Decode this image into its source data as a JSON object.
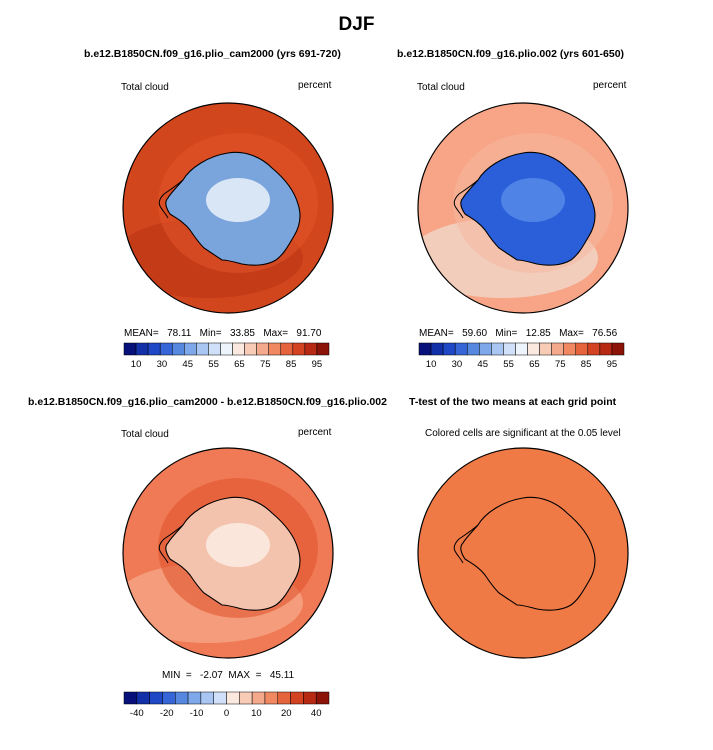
{
  "figure": {
    "title": "DJF"
  },
  "panels": [
    {
      "title": "b.e12.B1850CN.f09_g16.plio_cam2000 (yrs 691-720)",
      "left_label": "Total cloud",
      "right_label": "percent",
      "stats": "MEAN=   78.11   Min=   33.85   Max=   91.70",
      "field": {
        "ocean": "#d2461d",
        "outer_band": "#c23a18",
        "continent": "#7aa4dc",
        "interior": "#d9e6f6",
        "coast_band": "#e2552a"
      }
    },
    {
      "title": "b.e12.B1850CN.f09_g16.plio.002 (yrs 601-650)",
      "left_label": "Total cloud",
      "right_label": "percent",
      "stats": "MEAN=   59.60   Min=   12.85   Max=   76.56",
      "field": {
        "ocean": "#f7a586",
        "outer_band": "#f1d3c6",
        "continent": "#2a5fd9",
        "interior": "#4f83e6",
        "coast_band": "#f6b89e"
      }
    },
    {
      "title": "b.e12.B1850CN.f09_g16.plio_cam2000 - b.e12.B1850CN.f09_g16.plio.002",
      "left_label": "Total cloud",
      "right_label": "percent",
      "stats": "MIN  =   -2.07  MAX  =   45.11",
      "field": {
        "ocean": "#f07a55",
        "outer_band": "#f5a283",
        "continent": "#f4c3ad",
        "interior": "#fbe6dc",
        "coast_band": "#e05129"
      }
    },
    {
      "title": "T-test of the two means at each grid point",
      "subtitle": "Colored cells are significant at the 0.05 level",
      "field": {
        "fill": "#f07a45"
      }
    }
  ],
  "chart_data": [
    {
      "type": "heatmap",
      "title": "b.e12.B1850CN.f09_g16.plio_cam2000 (yrs 691-720)",
      "variable": "Total cloud",
      "units": "percent",
      "mean": 78.11,
      "min": 33.85,
      "max": 91.7,
      "colorbar": {
        "levels": [
          10,
          30,
          45,
          55,
          65,
          75,
          85,
          95
        ],
        "colors": [
          "#08107a",
          "#1230a8",
          "#1f48c6",
          "#3565d6",
          "#5688e0",
          "#7ea8ea",
          "#a9c6f2",
          "#d0e0f8",
          "#eef4fb",
          "#fbe8df",
          "#f8cbb7",
          "#f5a98c",
          "#f08862",
          "#e5643c",
          "#d44321",
          "#b82914",
          "#8c1308"
        ]
      }
    },
    {
      "type": "heatmap",
      "title": "b.e12.B1850CN.f09_g16.plio.002 (yrs 601-650)",
      "variable": "Total cloud",
      "units": "percent",
      "mean": 59.6,
      "min": 12.85,
      "max": 76.56,
      "colorbar": {
        "levels": [
          10,
          30,
          45,
          55,
          65,
          75,
          85,
          95
        ],
        "colors": [
          "#08107a",
          "#1230a8",
          "#1f48c6",
          "#3565d6",
          "#5688e0",
          "#7ea8ea",
          "#a9c6f2",
          "#d0e0f8",
          "#eef4fb",
          "#fbe8df",
          "#f8cbb7",
          "#f5a98c",
          "#f08862",
          "#e5643c",
          "#d44321",
          "#b82914",
          "#8c1308"
        ]
      }
    },
    {
      "type": "heatmap",
      "title": "b.e12.B1850CN.f09_g16.plio_cam2000 - b.e12.B1850CN.f09_g16.plio.002",
      "variable": "Total cloud",
      "units": "percent",
      "min": -2.07,
      "max": 45.11,
      "colorbar": {
        "levels": [
          -40,
          -20,
          -10,
          0,
          10,
          20,
          40
        ],
        "colors": [
          "#08107a",
          "#1230a8",
          "#1f48c6",
          "#3565d6",
          "#5688e0",
          "#7ea8ea",
          "#a9c6f2",
          "#d0e0f8",
          "#fbe8df",
          "#f8cbb7",
          "#f5a98c",
          "#f08862",
          "#e5643c",
          "#d44321",
          "#b82914",
          "#8c1308"
        ]
      }
    },
    {
      "type": "heatmap",
      "title": "T-test of the two means at each grid point",
      "subtitle": "Colored cells are significant at the 0.05 level",
      "significant_everywhere": true
    }
  ]
}
